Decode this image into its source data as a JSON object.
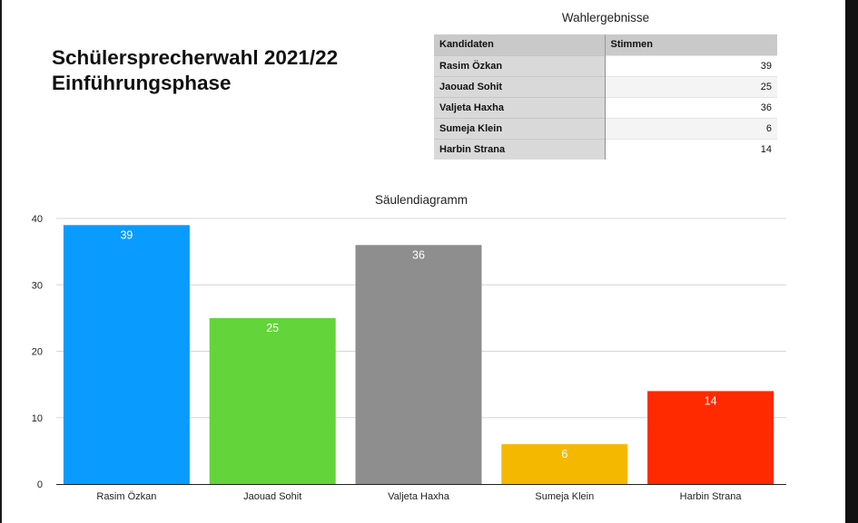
{
  "heading": {
    "line1": "Schülersprecherwahl 2021/22",
    "line2": "Einführungsphase"
  },
  "table": {
    "title": "Wahlergebnisse",
    "headers": [
      "Kandidaten",
      "Stimmen"
    ],
    "rows": [
      {
        "name": "Rasim Özkan",
        "votes": "39"
      },
      {
        "name": "Jaouad Sohit",
        "votes": "25"
      },
      {
        "name": "Valjeta Haxha",
        "votes": "36"
      },
      {
        "name": "Sumeja Klein",
        "votes": "6"
      },
      {
        "name": "Harbin Strana",
        "votes": "14"
      }
    ]
  },
  "chart_data": {
    "type": "bar",
    "title": "Säulendiagramm",
    "categories": [
      "Rasim Özkan",
      "Jaouad Sohit",
      "Valjeta Haxha",
      "Sumeja Klein",
      "Harbin Strana"
    ],
    "values": [
      39,
      25,
      36,
      6,
      14
    ],
    "colors": [
      "#0a9bff",
      "#63d43a",
      "#8e8e8e",
      "#f5b800",
      "#ff2a00"
    ],
    "ylim": [
      0,
      40
    ],
    "yticks": [
      0,
      10,
      20,
      30,
      40
    ],
    "grid": true,
    "data_labels": true,
    "xlabel": "",
    "ylabel": ""
  }
}
